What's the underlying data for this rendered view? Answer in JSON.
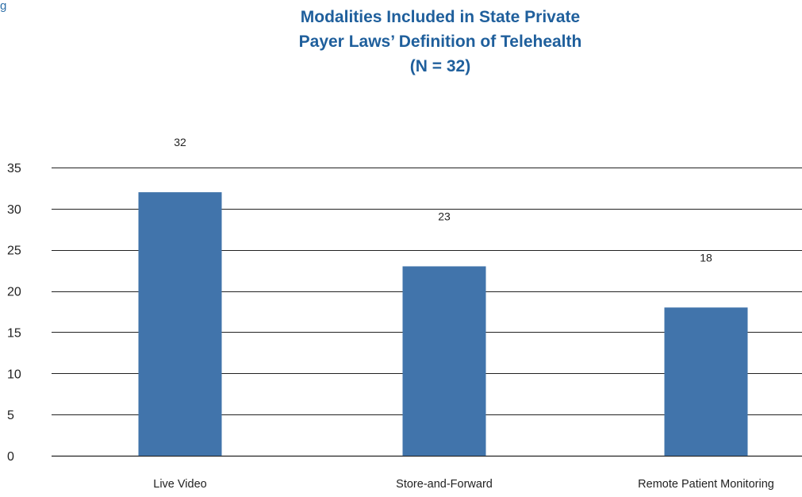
{
  "corner_text": "g",
  "chart_data": {
    "type": "bar",
    "title_lines": [
      "Modalities Included in State Private",
      "Payer Laws’ Definition of Telehealth",
      "(N = 32)"
    ],
    "categories": [
      "Live Video",
      "Store-and-Forward",
      "Remote Patient Monitoring"
    ],
    "values": [
      32,
      23,
      18
    ],
    "data_labels": [
      "32",
      "23",
      "18"
    ],
    "ylim": [
      0,
      35
    ],
    "yticks": [
      0,
      5,
      10,
      15,
      20,
      25,
      30,
      35
    ],
    "xlabel": "",
    "ylabel": "",
    "grid": true,
    "legend": "none",
    "colors": {
      "bar": "#4174ab",
      "title": "#1f5f9c",
      "grid": "#222222",
      "text": "#222222"
    }
  }
}
